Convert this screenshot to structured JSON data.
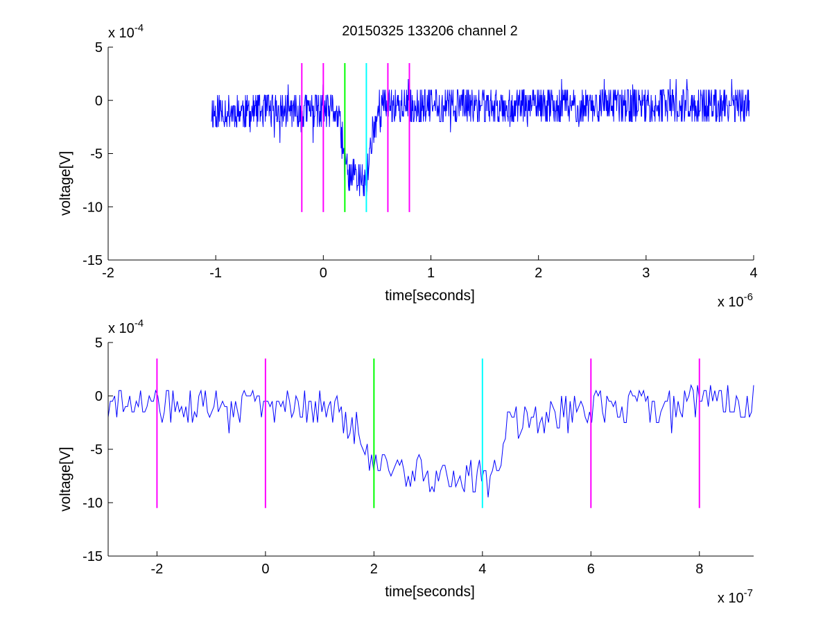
{
  "title": "20150325 133206 channel 2",
  "chart_data": [
    {
      "type": "line",
      "xlabel": "time[seconds]",
      "ylabel": "voltage[V]",
      "x_exponent_label": "x 10",
      "x_exponent": "-6",
      "y_exponent_label": "x 10",
      "y_exponent": "-4",
      "xlim": [
        -2,
        4
      ],
      "ylim": [
        -15,
        5
      ],
      "x_ticks": [
        -2,
        -1,
        0,
        1,
        2,
        3,
        4
      ],
      "x_tick_labels": [
        "-2",
        "-1",
        "0",
        "1",
        "2",
        "3",
        "4"
      ],
      "y_ticks": [
        5,
        0,
        -5,
        -10,
        -15
      ],
      "y_tick_labels": [
        "5",
        "0",
        "-5",
        "-10",
        "-15"
      ],
      "grid": false,
      "signal": {
        "name": "",
        "color": "#0000ff",
        "x_start": -1.04,
        "x_end": 3.96,
        "x": [
          -1.04,
          0.12,
          0.15,
          0.2,
          0.4,
          0.44,
          0.47,
          0.52,
          3.96
        ],
        "y": [
          -1.2,
          -1.2,
          -2.0,
          -6.5,
          -8.0,
          -4.0,
          -2.5,
          -0.7,
          -0.7
        ],
        "noise_amplitude": 1.5
      },
      "vertical_markers": [
        {
          "x": -0.2,
          "y_range": [
            -10.5,
            3.5
          ],
          "color": "#ff00ff"
        },
        {
          "x": 0.0,
          "y_range": [
            -10.5,
            3.5
          ],
          "color": "#ff00ff"
        },
        {
          "x": 0.2,
          "y_range": [
            -10.5,
            3.5
          ],
          "color": "#00ff00"
        },
        {
          "x": 0.4,
          "y_range": [
            -10.5,
            3.5
          ],
          "color": "#00ffff"
        },
        {
          "x": 0.6,
          "y_range": [
            -10.5,
            3.5
          ],
          "color": "#ff00ff"
        },
        {
          "x": 0.8,
          "y_range": [
            -10.5,
            3.5
          ],
          "color": "#ff00ff"
        }
      ]
    },
    {
      "type": "line",
      "xlabel": "time[seconds]",
      "ylabel": "voltage[V]",
      "x_exponent_label": "x 10",
      "x_exponent": "-7",
      "y_exponent_label": "x 10",
      "y_exponent": "-4",
      "xlim": [
        -2.9,
        9.0
      ],
      "ylim": [
        -15,
        5
      ],
      "x_ticks": [
        -2,
        0,
        2,
        4,
        6,
        8
      ],
      "x_tick_labels": [
        "-2",
        "0",
        "2",
        "4",
        "6",
        "8"
      ],
      "y_ticks": [
        5,
        0,
        -5,
        -10,
        -15
      ],
      "y_tick_labels": [
        "5",
        "0",
        "-5",
        "-10",
        "-15"
      ],
      "grid": false,
      "signal": {
        "name": "",
        "color": "#0000ff",
        "x_start": -2.9,
        "x_end": 9.0,
        "x": [
          -2.9,
          1.2,
          1.5,
          1.8,
          2.0,
          2.5,
          3.5,
          4.0,
          4.3,
          4.5,
          5.0,
          6.0,
          9.0
        ],
        "y": [
          -1.0,
          -1.0,
          -2.5,
          -5.5,
          -7.0,
          -6.8,
          -7.8,
          -7.5,
          -6.5,
          -2.5,
          -2.0,
          -1.0,
          -0.5
        ],
        "noise_amplitude": 1.5
      },
      "vertical_markers": [
        {
          "x": -2,
          "y_range": [
            -10.5,
            3.5
          ],
          "color": "#ff00ff"
        },
        {
          "x": 0,
          "y_range": [
            -10.5,
            3.5
          ],
          "color": "#ff00ff"
        },
        {
          "x": 2,
          "y_range": [
            -10.5,
            3.5
          ],
          "color": "#00ff00"
        },
        {
          "x": 4,
          "y_range": [
            -10.5,
            3.5
          ],
          "color": "#00ffff"
        },
        {
          "x": 6,
          "y_range": [
            -10.5,
            3.5
          ],
          "color": "#ff00ff"
        },
        {
          "x": 8,
          "y_range": [
            -10.5,
            3.5
          ],
          "color": "#ff00ff"
        }
      ]
    }
  ]
}
